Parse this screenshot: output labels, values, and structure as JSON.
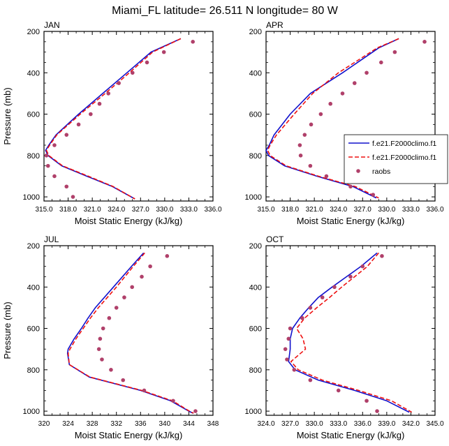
{
  "title": "Miami_FL  latitude= 26.511 N longitude= 80 W",
  "chart_data": [
    {
      "type": "line",
      "panel_label": "JAN",
      "xlabel": "Moist Static Energy (kJ/kg)",
      "ylabel": "Pressure (mb)",
      "xlim": [
        315,
        336
      ],
      "ylim": [
        1020,
        200
      ],
      "y_inverted": true,
      "xticks": [
        "315.0",
        "318.0",
        "321.0",
        "324.0",
        "327.0",
        "330.0",
        "333.0",
        "336.0"
      ],
      "xtick_values": [
        315,
        318,
        321,
        324,
        327,
        330,
        333,
        336
      ],
      "yticks": [
        "200",
        "400",
        "600",
        "800",
        "1000"
      ],
      "ytick_values": [
        200,
        400,
        600,
        800,
        1000
      ],
      "series": [
        {
          "style": "solid",
          "color": "#1010cc",
          "p": [
            235,
            300,
            400,
            500,
            600,
            700,
            750,
            775,
            800,
            850,
            900,
            950,
            1010
          ],
          "x": [
            332.0,
            328.3,
            325.3,
            322.3,
            319.3,
            316.5,
            315.6,
            315.2,
            315.5,
            317.2,
            320.3,
            323.5,
            326.3
          ]
        },
        {
          "style": "dashed",
          "color": "#ee1111",
          "p": [
            235,
            300,
            400,
            500,
            600,
            700,
            750,
            775,
            800,
            850,
            900,
            950,
            1010
          ],
          "x": [
            332.0,
            328.5,
            325.6,
            322.6,
            319.5,
            316.6,
            315.7,
            315.3,
            315.6,
            317.3,
            320.5,
            323.6,
            326.3
          ]
        },
        {
          "style": "dots",
          "color": "#b0406a",
          "p": [
            250,
            300,
            350,
            400,
            450,
            500,
            550,
            600,
            650,
            700,
            750,
            800,
            850,
            900,
            950,
            1000
          ],
          "x": [
            333.5,
            329.9,
            327.8,
            326.0,
            324.3,
            323.0,
            321.9,
            320.8,
            319.3,
            317.8,
            316.3,
            315.3,
            315.5,
            316.3,
            317.8,
            318.6
          ]
        }
      ]
    },
    {
      "type": "line",
      "panel_label": "APR",
      "xlabel": "Moist Static Energy (kJ/kg)",
      "ylabel": "",
      "xlim": [
        315,
        336
      ],
      "ylim": [
        1020,
        200
      ],
      "y_inverted": true,
      "xticks": [
        "315.0",
        "318.0",
        "321.0",
        "324.0",
        "327.0",
        "330.0",
        "333.0",
        "336.0"
      ],
      "xtick_values": [
        315,
        318,
        321,
        324,
        327,
        330,
        333,
        336
      ],
      "yticks": [
        "200",
        "400",
        "600",
        "800",
        "1000"
      ],
      "ytick_values": [
        200,
        400,
        600,
        800,
        1000
      ],
      "legend_position": "right",
      "legend": [
        {
          "label": "f.e21.F2000climo.f1",
          "style": "solid",
          "color": "#1010cc"
        },
        {
          "label": "f.e21.F2000climo.f1",
          "style": "dashed",
          "color": "#ee1111"
        },
        {
          "label": "raobs",
          "style": "dots",
          "color": "#b0406a"
        }
      ],
      "series": [
        {
          "style": "solid",
          "color": "#1010cc",
          "p": [
            235,
            280,
            400,
            500,
            600,
            700,
            750,
            775,
            800,
            850,
            900,
            950,
            1005
          ],
          "x": [
            331.5,
            329.0,
            324.5,
            320.5,
            318.0,
            316.0,
            315.4,
            315.0,
            315.3,
            317.3,
            321.3,
            325.8,
            328.7
          ]
        },
        {
          "style": "dashed",
          "color": "#ee1111",
          "p": [
            235,
            280,
            400,
            500,
            600,
            700,
            750,
            775,
            800,
            850,
            900,
            950,
            1005
          ],
          "x": [
            331.5,
            328.8,
            324.0,
            320.8,
            318.5,
            316.3,
            315.5,
            315.2,
            315.5,
            317.5,
            321.5,
            326.1,
            329.0
          ]
        },
        {
          "style": "dots",
          "color": "#b0406a",
          "p": [
            250,
            300,
            350,
            400,
            450,
            500,
            550,
            600,
            650,
            700,
            750,
            800,
            850,
            900,
            950,
            990
          ],
          "x": [
            334.7,
            331.0,
            329.3,
            327.5,
            326.0,
            324.5,
            323.0,
            321.8,
            320.6,
            319.8,
            319.2,
            319.3,
            320.5,
            322.5,
            325.5,
            328.3
          ]
        }
      ]
    },
    {
      "type": "line",
      "panel_label": "JUL",
      "xlabel": "Moist Static Energy (kJ/kg)",
      "ylabel": "Pressure (mb)",
      "xlim": [
        320,
        348
      ],
      "ylim": [
        1020,
        200
      ],
      "y_inverted": true,
      "xticks": [
        "320",
        "324",
        "328",
        "332",
        "336",
        "340",
        "344",
        "348"
      ],
      "xtick_values": [
        320,
        324,
        328,
        332,
        336,
        340,
        344,
        348
      ],
      "yticks": [
        "200",
        "400",
        "600",
        "800",
        "1000"
      ],
      "ytick_values": [
        200,
        400,
        600,
        800,
        1000
      ],
      "series": [
        {
          "style": "solid",
          "color": "#1010cc",
          "p": [
            235,
            300,
            400,
            500,
            550,
            600,
            650,
            700,
            720,
            775,
            835,
            900,
            950,
            1000,
            1010
          ],
          "x": [
            336.5,
            334.5,
            331.5,
            328.5,
            327.3,
            326.2,
            325.0,
            324.0,
            323.9,
            324.2,
            327.5,
            336.0,
            341.0,
            344.0,
            344.7
          ]
        },
        {
          "style": "dashed",
          "color": "#ee1111",
          "p": [
            235,
            300,
            400,
            500,
            550,
            600,
            650,
            700,
            720,
            775,
            835,
            900,
            950,
            1000,
            1010
          ],
          "x": [
            336.7,
            334.8,
            332.0,
            329.0,
            327.7,
            326.5,
            325.3,
            324.3,
            324.0,
            324.2,
            327.6,
            336.2,
            341.3,
            344.1,
            344.8
          ]
        },
        {
          "style": "dots",
          "color": "#b0406a",
          "p": [
            250,
            300,
            350,
            400,
            450,
            500,
            550,
            600,
            650,
            700,
            750,
            800,
            850,
            900,
            950,
            1000
          ],
          "x": [
            340.4,
            337.6,
            336.2,
            334.6,
            333.3,
            332.0,
            330.8,
            329.8,
            329.3,
            329.1,
            329.6,
            331.1,
            333.1,
            336.6,
            341.4,
            345.1
          ]
        }
      ]
    },
    {
      "type": "line",
      "panel_label": "OCT",
      "xlabel": "Moist Static Energy (kJ/kg)",
      "ylabel": "",
      "xlim": [
        324,
        345
      ],
      "ylim": [
        1020,
        200
      ],
      "y_inverted": true,
      "xticks": [
        "324.0",
        "327.0",
        "330.0",
        "333.0",
        "336.0",
        "339.0",
        "342.0",
        "345.0"
      ],
      "xtick_values": [
        324,
        327,
        330,
        333,
        336,
        339,
        342,
        345
      ],
      "yticks": [
        "200",
        "400",
        "600",
        "800",
        "1000"
      ],
      "ytick_values": [
        200,
        400,
        600,
        800,
        1000
      ],
      "series": [
        {
          "style": "solid",
          "color": "#1010cc",
          "p": [
            235,
            300,
            350,
            400,
            450,
            500,
            550,
            600,
            650,
            700,
            760,
            800,
            850,
            900,
            950,
            1005
          ],
          "x": [
            337.8,
            335.8,
            334.0,
            332.2,
            330.5,
            329.3,
            328.2,
            327.3,
            327.0,
            327.0,
            326.8,
            327.6,
            330.5,
            335.0,
            339.0,
            341.8
          ]
        },
        {
          "style": "dashed",
          "color": "#ee1111",
          "p": [
            235,
            300,
            350,
            400,
            450,
            500,
            550,
            600,
            650,
            700,
            760,
            800,
            850,
            900,
            950,
            1005
          ],
          "x": [
            338.0,
            336.6,
            335.0,
            333.4,
            331.9,
            330.3,
            328.8,
            327.8,
            328.6,
            328.9,
            327.1,
            328.0,
            331.0,
            335.5,
            339.6,
            342.1
          ]
        },
        {
          "style": "dots",
          "color": "#b0406a",
          "p": [
            250,
            300,
            350,
            400,
            450,
            500,
            550,
            600,
            650,
            700,
            750,
            800,
            850,
            900,
            950,
            1000
          ],
          "x": [
            338.4,
            336.0,
            334.5,
            332.5,
            331.0,
            329.5,
            328.5,
            327.0,
            326.8,
            326.4,
            326.6,
            327.5,
            329.5,
            333.0,
            336.5,
            337.8
          ]
        }
      ]
    }
  ]
}
